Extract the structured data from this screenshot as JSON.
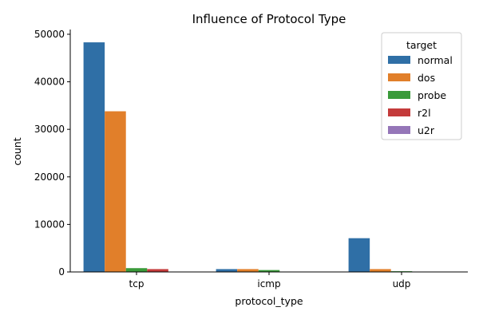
{
  "chart_data": {
    "type": "bar",
    "title": "Influence of Protocol Type",
    "xlabel": "protocol_type",
    "ylabel": "count",
    "categories": [
      "tcp",
      "icmp",
      "udp"
    ],
    "ylim": [
      0,
      51000
    ],
    "yticks": [
      0,
      10000,
      20000,
      30000,
      40000,
      50000
    ],
    "legend": {
      "title": "target",
      "placement": "top-right"
    },
    "grid": false,
    "series": [
      {
        "name": "normal",
        "color": "#2f6fa6",
        "values": [
          48300,
          600,
          7100
        ]
      },
      {
        "name": "dos",
        "color": "#e17f2a",
        "values": [
          33800,
          600,
          600
        ]
      },
      {
        "name": "probe",
        "color": "#3a9a3a",
        "values": [
          800,
          400,
          150
        ]
      },
      {
        "name": "r2l",
        "color": "#c43b3b",
        "values": [
          600,
          0,
          0
        ]
      },
      {
        "name": "u2r",
        "color": "#9576b8",
        "values": [
          0,
          0,
          0
        ]
      }
    ]
  }
}
